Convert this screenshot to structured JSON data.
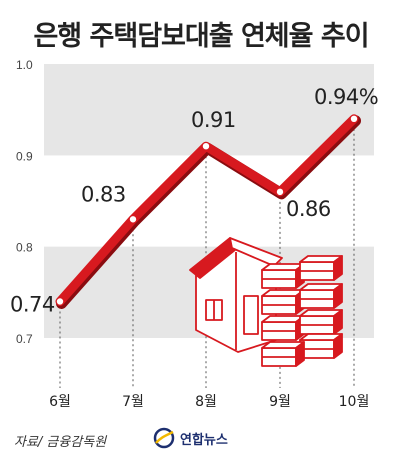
{
  "title": "은행 주택담보대출 연체율 추이",
  "source": "자료/ 금융감독원",
  "agency_logo": "연합뉴스",
  "colors": {
    "line": "#d7191f",
    "band": "#e6e6e6",
    "illustration": "#d7191f"
  },
  "chart_data": {
    "type": "line",
    "categories": [
      "6월",
      "7월",
      "8월",
      "9월",
      "10월"
    ],
    "series": [
      {
        "values": [
          0.74,
          0.83,
          0.91,
          0.86,
          0.94
        ]
      }
    ],
    "data_labels": [
      "0.74",
      "0.83",
      "0.91",
      "0.86",
      "0.94%"
    ],
    "ylim": [
      0.7,
      1.0
    ],
    "yticks": [
      0.7,
      0.8,
      0.9,
      1.0
    ],
    "ytick_labels": [
      "0.7",
      "0.8",
      "0.9",
      "1.0"
    ],
    "background": "alternating horizontal bands",
    "illustration": "house-and-money-icon"
  }
}
